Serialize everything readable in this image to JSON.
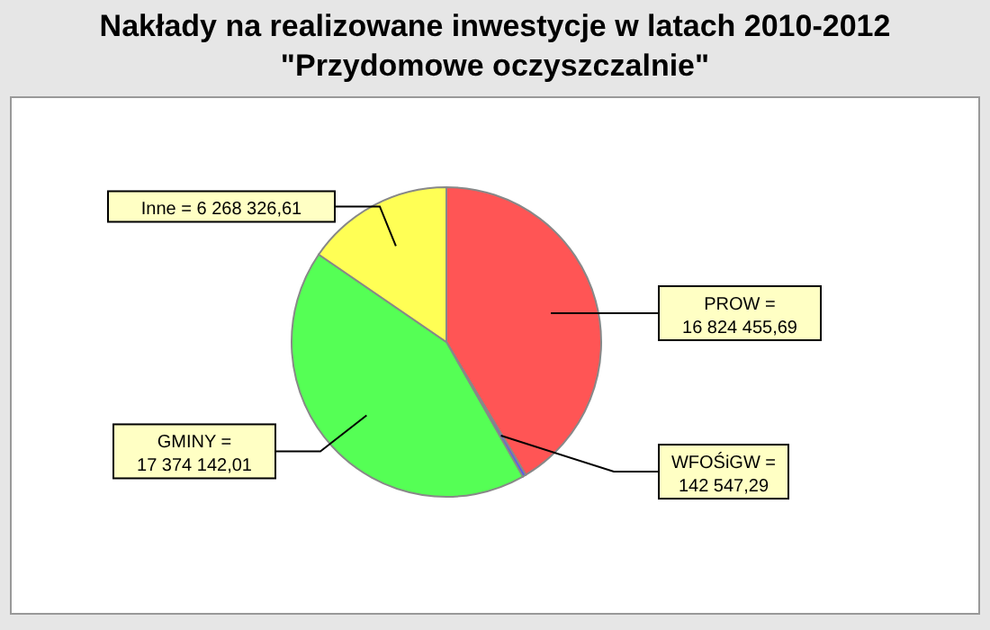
{
  "chart_data": {
    "type": "pie",
    "title": "Nakłady na realizowane inwestycje w latach 2010-2012\n\"Przydomowe oczyszczalnie\"",
    "categories": [
      "PROW =",
      "WFOŚiGW =",
      "GMINY =",
      "Inne ="
    ],
    "values": [
      16824455.69,
      142547.29,
      17374142.01,
      6268326.61
    ],
    "value_labels": [
      "16 824 455,69",
      "142 547,29",
      "17 374 142,01",
      "6 268 326,61"
    ],
    "colors": [
      "#ff5555",
      "#5555ff",
      "#55ff55",
      "#ffff55"
    ]
  }
}
